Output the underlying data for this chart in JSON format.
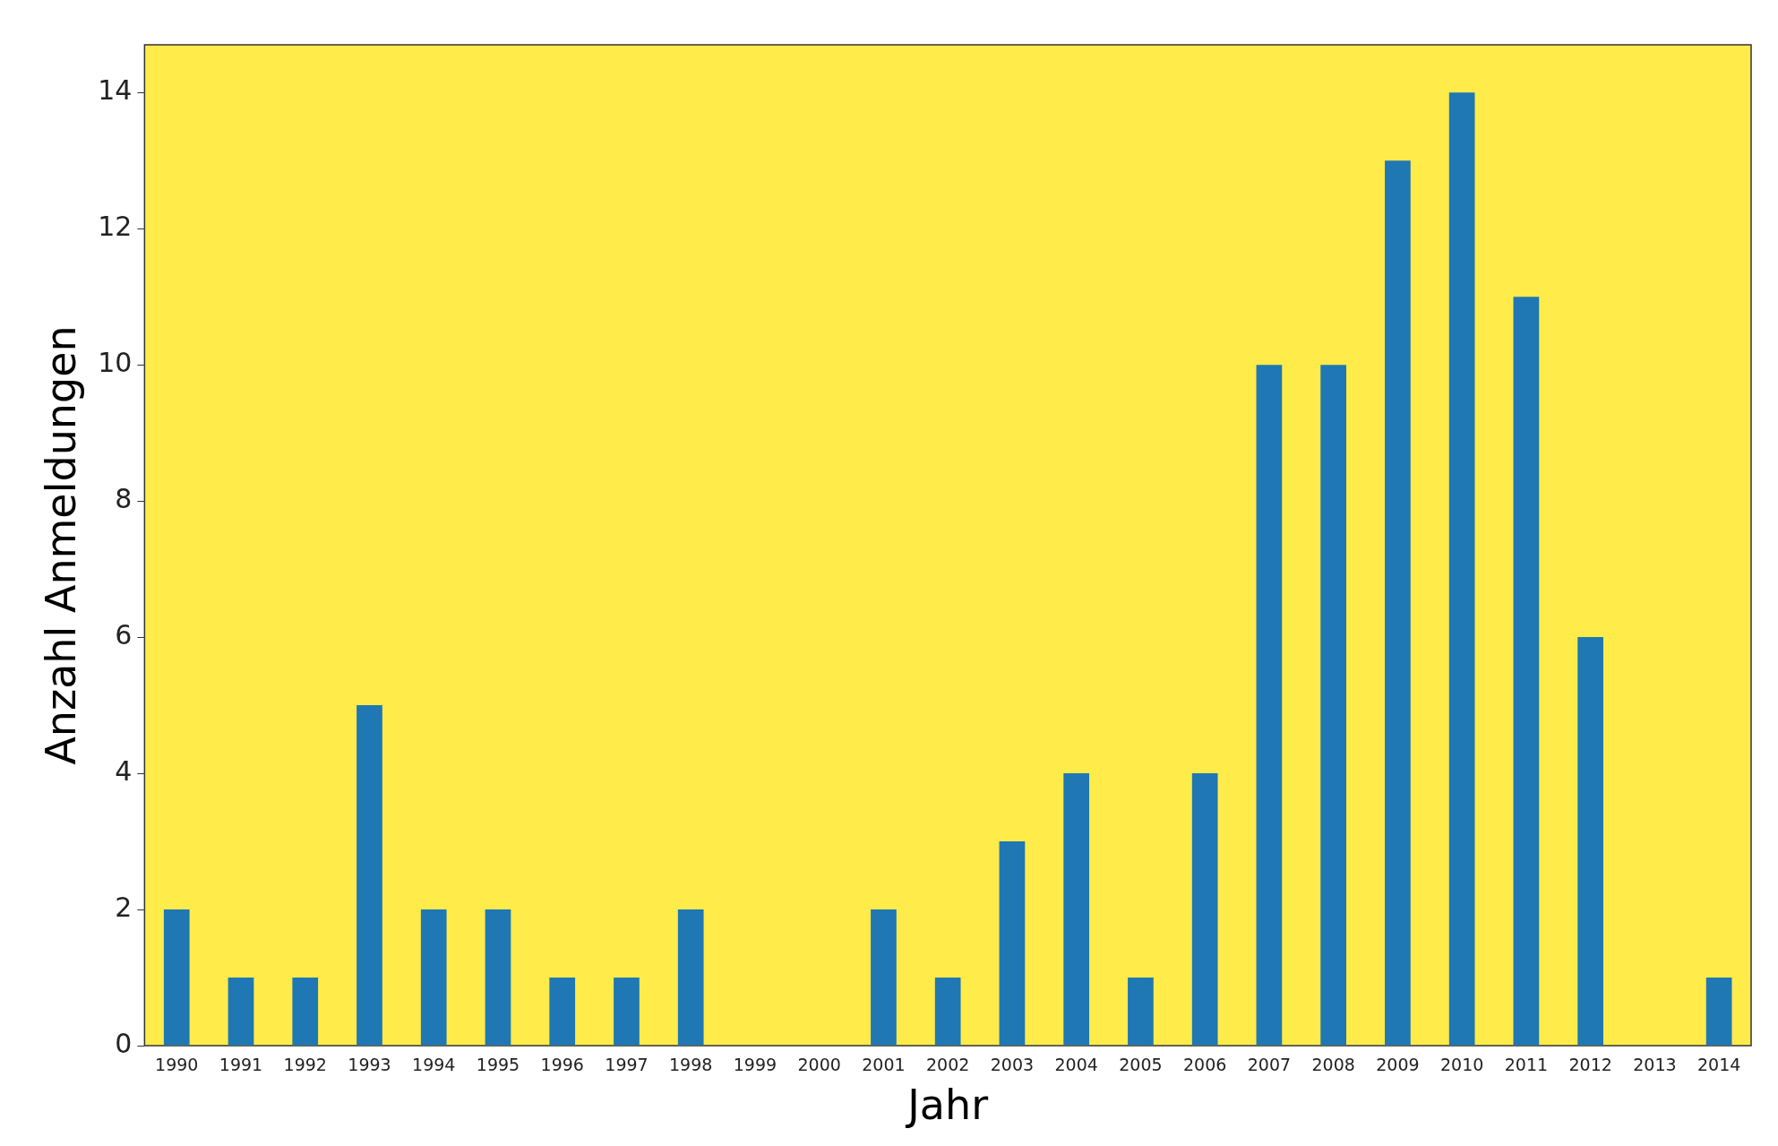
{
  "chart_data": {
    "type": "bar",
    "xlabel": "Jahr",
    "ylabel": "Anzahl Anmeldungen",
    "categories": [
      "1990",
      "1991",
      "1992",
      "1993",
      "1994",
      "1995",
      "1996",
      "1997",
      "1998",
      "1999",
      "2000",
      "2001",
      "2002",
      "2003",
      "2004",
      "2005",
      "2006",
      "2007",
      "2008",
      "2009",
      "2010",
      "2011",
      "2012",
      "2013",
      "2014"
    ],
    "values": [
      2,
      1,
      1,
      5,
      2,
      2,
      1,
      1,
      2,
      0,
      0,
      2,
      1,
      3,
      4,
      1,
      4,
      10,
      10,
      13,
      14,
      11,
      6,
      0,
      1
    ],
    "color": "#1f77b4",
    "ylim": [
      0,
      14.7
    ],
    "yticks": [
      0,
      2,
      4,
      6,
      8,
      10,
      12,
      14
    ],
    "grid": false,
    "legend": false
  }
}
